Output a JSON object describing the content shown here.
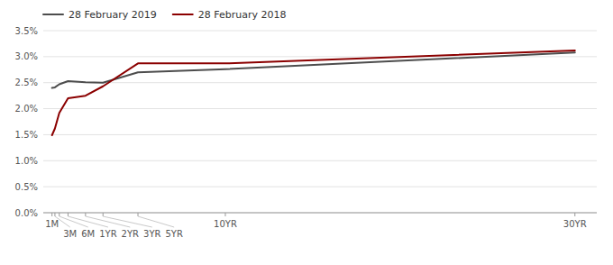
{
  "chart_data": {
    "type": "line",
    "x": [
      1,
      3,
      6,
      12,
      24,
      36,
      60,
      120,
      360
    ],
    "xlim": [
      -5,
      375
    ],
    "xticks": [
      {
        "value": 1,
        "label": "1M"
      },
      {
        "value": 3,
        "label": "3M"
      },
      {
        "value": 6,
        "label": "6M"
      },
      {
        "value": 12,
        "label": "1YR"
      },
      {
        "value": 24,
        "label": "2YR"
      },
      {
        "value": 36,
        "label": "3YR"
      },
      {
        "value": 60,
        "label": "5YR"
      },
      {
        "value": 120,
        "label": "10YR"
      },
      {
        "value": 360,
        "label": "30YR"
      }
    ],
    "ylim": [
      0.0,
      3.5
    ],
    "yticks": [
      {
        "value": 0.0,
        "label": "0.0%"
      },
      {
        "value": 0.5,
        "label": "0.5%"
      },
      {
        "value": 1.0,
        "label": "1.0%"
      },
      {
        "value": 1.5,
        "label": "1.5%"
      },
      {
        "value": 2.0,
        "label": "2.0%"
      },
      {
        "value": 2.5,
        "label": "2.5%"
      },
      {
        "value": 3.0,
        "label": "3.0%"
      },
      {
        "value": 3.5,
        "label": "3.5%"
      }
    ],
    "series": [
      {
        "name": "28 February 2019",
        "color": "#4d4d4d",
        "values": [
          2.4,
          2.41,
          2.47,
          2.53,
          2.51,
          2.5,
          2.7,
          2.76,
          3.08
        ]
      },
      {
        "name": "28 February 2018",
        "color": "#8b0000",
        "values": [
          1.49,
          1.62,
          1.92,
          2.2,
          2.25,
          2.43,
          2.87,
          2.87,
          3.12
        ]
      }
    ],
    "grid": true,
    "legend": "top-left"
  }
}
